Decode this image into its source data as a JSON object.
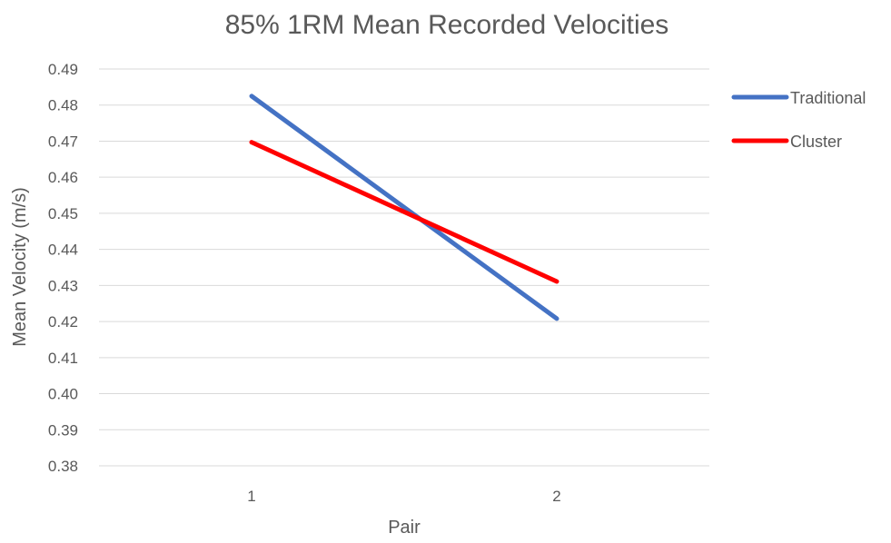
{
  "chart_data": {
    "type": "line",
    "title": "85% 1RM Mean Recorded Velocities",
    "xlabel": "Pair",
    "ylabel": "Mean Velocity (m/s)",
    "categories": [
      "1",
      "2"
    ],
    "ylim": [
      0.38,
      0.49
    ],
    "yticks": [
      "0.38",
      "0.39",
      "0.40",
      "0.41",
      "0.42",
      "0.43",
      "0.44",
      "0.45",
      "0.46",
      "0.47",
      "0.48",
      "0.49"
    ],
    "grid": true,
    "legend_position": "right",
    "series": [
      {
        "name": "Traditional",
        "values": [
          0.4825,
          0.4208
        ],
        "color": "#4472c4"
      },
      {
        "name": "Cluster",
        "values": [
          0.4697,
          0.4311
        ],
        "color": "#ff0000"
      }
    ]
  }
}
